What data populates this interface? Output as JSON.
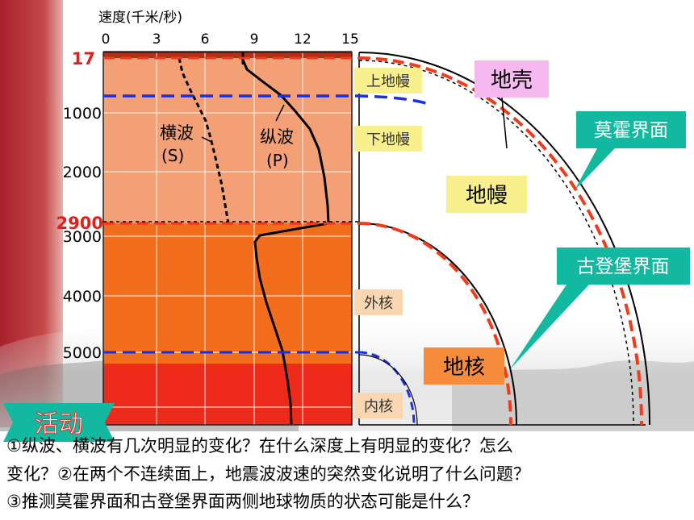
{
  "speed_axis": {
    "label": "速度(千米/秒)",
    "ticks": [
      "0",
      "3",
      "6",
      "9",
      "12",
      "15"
    ]
  },
  "depth_axis": {
    "ticks": [
      "1000",
      "2000",
      "3000",
      "4000",
      "5000"
    ],
    "highlight": [
      "17",
      "2900"
    ]
  },
  "layers": {
    "upper_mantle": "上地幔",
    "lower_mantle": "下地幔",
    "outer_core": "外核",
    "inner_core": "内核"
  },
  "waves": {
    "s": {
      "name": "横波",
      "code": "(S)"
    },
    "p": {
      "name": "纵波",
      "code": "(P)"
    }
  },
  "regions": {
    "crust": "地壳",
    "mantle": "地幔",
    "core": "地核"
  },
  "boundaries": {
    "moho": "莫霍界面",
    "gutenberg": "古登堡界面"
  },
  "activity_label": "活动",
  "questions": [
    "①纵波、横波有几次明显的变化？在什么深度上有明显的变化？怎么",
    "变化？②在两个不连续面上，地震波波速的突然变化说明了什么问题？",
    "③推测莫霍界面和古登堡界面两侧地球物质的状态可能是什么？"
  ],
  "colors": {
    "mantle": "#f4a076",
    "outer_core": "#f26d1c",
    "inner_core": "#ee2a1a",
    "boundary_red": "#f03c1c",
    "boundary_blue": "#1830e0",
    "callout_teal": "#12b9a0",
    "crust_box": "#f5b8ef",
    "layer_box": "#f8f08c",
    "core_box": "#f58c3c"
  }
}
